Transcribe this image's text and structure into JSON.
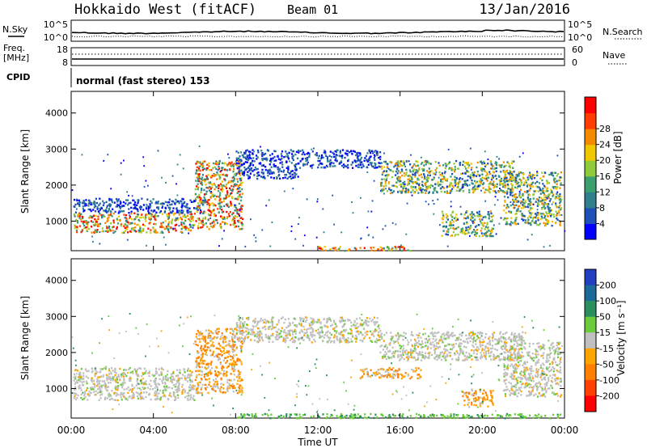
{
  "header": {
    "station": "Hokkaido West (fitACF)",
    "beam": "Beam 01",
    "date": "13/Jan/2016"
  },
  "noise_panel": {
    "left_label": "N.Sky",
    "right_label": "N.Search",
    "ytick_top": "10^5",
    "ytick_bottom": "10^0"
  },
  "freq_panel": {
    "left_label_line1": "Freq.",
    "left_label_line2": "[MHz]",
    "left_top": "18",
    "left_bottom": "8",
    "right_label": "Nave",
    "right_top": "60",
    "right_bottom": "0"
  },
  "cpid": {
    "label": "CPID",
    "mode": "normal (fast stereo) 153"
  },
  "chart_data": [
    {
      "type": "heatmap",
      "title": "",
      "ylabel": "Slant Range [km]",
      "xlabel": "Time UT",
      "x_ticks": [
        "00:00",
        "04:00",
        "08:00",
        "12:00",
        "16:00",
        "20:00",
        "00:00"
      ],
      "y_ticks": [
        "1000",
        "2000",
        "3000",
        "4000"
      ],
      "xlim_hours": [
        0,
        24
      ],
      "ylim_km": [
        180,
        4600
      ],
      "colorbar": {
        "label": "Power [dB]",
        "ticks": [
          "4",
          "8",
          "12",
          "16",
          "20",
          "24",
          "28"
        ],
        "colors": [
          "#0000ff",
          "#1f4fb8",
          "#2f7f8f",
          "#3aa070",
          "#8fcc3a",
          "#f0c800",
          "#f58a00",
          "#ff3d00",
          "#ff0000"
        ]
      },
      "bands": [
        {
          "t0": 0.1,
          "t1": 6.0,
          "r0": 700,
          "r1": 1250,
          "level": "high"
        },
        {
          "t0": 0.1,
          "t1": 6.5,
          "r0": 1250,
          "r1": 1650,
          "level": "low"
        },
        {
          "t0": 6.0,
          "t1": 8.3,
          "r0": 800,
          "r1": 2700,
          "level": "high"
        },
        {
          "t0": 8.0,
          "t1": 11.0,
          "r0": 2200,
          "r1": 3000,
          "level": "low"
        },
        {
          "t0": 11.0,
          "t1": 15.0,
          "r0": 2500,
          "r1": 3000,
          "level": "low"
        },
        {
          "t0": 12.0,
          "t1": 16.5,
          "r0": 200,
          "r1": 320,
          "level": "high"
        },
        {
          "t0": 15.0,
          "t1": 21.5,
          "r0": 1800,
          "r1": 2700,
          "level": "mid"
        },
        {
          "t0": 21.0,
          "t1": 23.8,
          "r0": 900,
          "r1": 2400,
          "level": "mid"
        },
        {
          "t0": 18.0,
          "t1": 20.5,
          "r0": 600,
          "r1": 1300,
          "level": "mid"
        }
      ]
    },
    {
      "type": "heatmap",
      "title": "",
      "ylabel": "Slant Range [km]",
      "xlabel": "Time UT",
      "x_ticks": [
        "00:00",
        "04:00",
        "08:00",
        "12:00",
        "16:00",
        "20:00",
        "00:00"
      ],
      "y_ticks": [
        "1000",
        "2000",
        "3000",
        "4000"
      ],
      "xlim_hours": [
        0,
        24
      ],
      "ylim_km": [
        180,
        4600
      ],
      "colorbar": {
        "label": "Velocity [m s⁻¹]",
        "ticks": [
          "200",
          "100",
          "50",
          "15",
          "-15",
          "-50",
          "-100",
          "-200"
        ],
        "colors": [
          "#2040c0",
          "#1a6a9a",
          "#2a8f5f",
          "#6acc3a",
          "#c0c0c0",
          "#ffa500",
          "#ff7f00",
          "#ff4000",
          "#ff0000"
        ]
      },
      "bands": [
        {
          "t0": 0.1,
          "t1": 6.0,
          "r0": 700,
          "r1": 1600,
          "level": "grey"
        },
        {
          "t0": 6.0,
          "t1": 8.3,
          "r0": 900,
          "r1": 2700,
          "level": "orange"
        },
        {
          "t0": 8.0,
          "t1": 15.0,
          "r0": 2300,
          "r1": 3000,
          "level": "grey"
        },
        {
          "t0": 15.0,
          "t1": 22.0,
          "r0": 1800,
          "r1": 2600,
          "level": "grey"
        },
        {
          "t0": 14.0,
          "t1": 17.0,
          "r0": 1300,
          "r1": 1600,
          "level": "orange"
        },
        {
          "t0": 19.0,
          "t1": 20.5,
          "r0": 500,
          "r1": 1000,
          "level": "orange"
        },
        {
          "t0": 21.0,
          "t1": 23.8,
          "r0": 800,
          "r1": 2300,
          "level": "grey"
        },
        {
          "t0": 8.0,
          "t1": 24.0,
          "r0": 200,
          "r1": 320,
          "level": "green"
        }
      ]
    }
  ]
}
